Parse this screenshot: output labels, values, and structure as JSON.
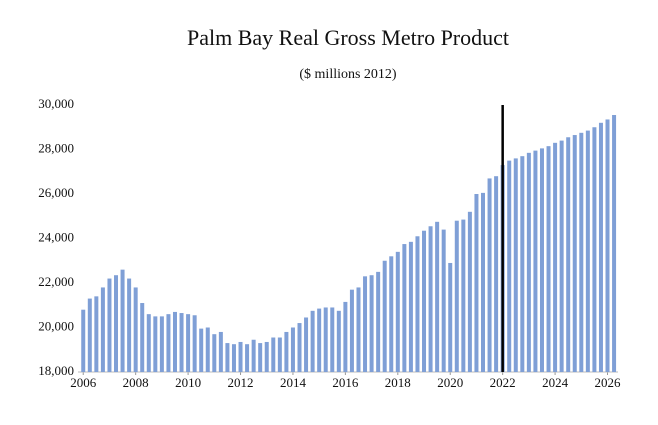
{
  "chart_data": {
    "type": "bar",
    "title": "Palm Bay Real Gross Metro Product",
    "subtitle": "($ millions 2012)",
    "x": [
      2006,
      2006.25,
      2006.5,
      2006.75,
      2007,
      2007.25,
      2007.5,
      2007.75,
      2008,
      2008.25,
      2008.5,
      2008.75,
      2009,
      2009.25,
      2009.5,
      2009.75,
      2010,
      2010.25,
      2010.5,
      2010.75,
      2011,
      2011.25,
      2011.5,
      2011.75,
      2012,
      2012.25,
      2012.5,
      2012.75,
      2013,
      2013.25,
      2013.5,
      2013.75,
      2014,
      2014.25,
      2014.5,
      2014.75,
      2015,
      2015.25,
      2015.5,
      2015.75,
      2016,
      2016.25,
      2016.5,
      2016.75,
      2017,
      2017.25,
      2017.5,
      2017.75,
      2018,
      2018.25,
      2018.5,
      2018.75,
      2019,
      2019.25,
      2019.5,
      2019.75,
      2020,
      2020.25,
      2020.5,
      2020.75,
      2021,
      2021.25,
      2021.5,
      2021.75,
      2022,
      2022.25,
      2022.5,
      2022.75,
      2023,
      2023.25,
      2023.5,
      2023.75,
      2024,
      2024.25,
      2024.5,
      2024.75,
      2025,
      2025.25,
      2025.5,
      2025.75,
      2026,
      2026.25
    ],
    "values": [
      20800,
      21300,
      21400,
      21800,
      22200,
      22350,
      22600,
      22200,
      21800,
      21100,
      20600,
      20500,
      20500,
      20600,
      20700,
      20650,
      20600,
      20550,
      19950,
      20000,
      19700,
      19800,
      19300,
      19250,
      19350,
      19250,
      19450,
      19300,
      19350,
      19550,
      19550,
      19800,
      20000,
      20200,
      20450,
      20750,
      20850,
      20900,
      20900,
      20750,
      21150,
      21700,
      21800,
      22300,
      22350,
      22500,
      23000,
      23200,
      23400,
      23750,
      23850,
      24100,
      24350,
      24550,
      24750,
      24400,
      22900,
      24800,
      24850,
      25200,
      26000,
      26050,
      26700,
      26800,
      27300,
      27500,
      27600,
      27700,
      27850,
      27950,
      28050,
      28150,
      28300,
      28400,
      28550,
      28650,
      28750,
      28850,
      29000,
      29200,
      29350,
      29550
    ],
    "color": "#7f9fd6",
    "xlim": [
      2005.8,
      2026.4
    ],
    "xticks": [
      2006,
      2008,
      2010,
      2012,
      2014,
      2016,
      2018,
      2020,
      2022,
      2024,
      2026
    ],
    "ylim": [
      18000,
      30000
    ],
    "yticks": [
      {
        "value": 18000,
        "label": "18,000"
      },
      {
        "value": 20000,
        "label": "20,000"
      },
      {
        "value": 22000,
        "label": "22,000"
      },
      {
        "value": 24000,
        "label": "24,000"
      },
      {
        "value": 26000,
        "label": "26,000"
      },
      {
        "value": 28000,
        "label": "28,000"
      },
      {
        "value": 30000,
        "label": "30,000"
      }
    ],
    "vline_x": 2022,
    "vline_color": "#000000",
    "grid": false
  }
}
